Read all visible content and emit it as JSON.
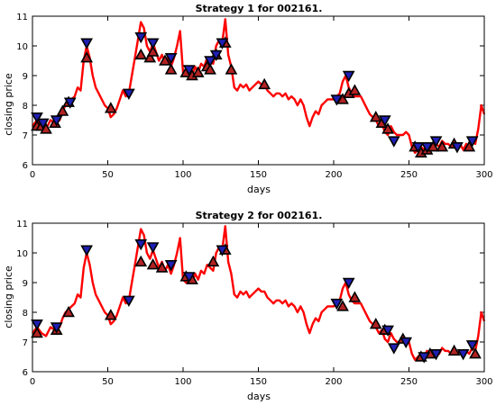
{
  "chart_data": [
    {
      "type": "line",
      "title": "Strategy 1 for 002161.",
      "xlabel": "days",
      "ylabel": "closing price",
      "xlim": [
        0,
        300
      ],
      "ylim": [
        6,
        11
      ],
      "xticks": [
        0,
        50,
        100,
        150,
        200,
        250,
        300
      ],
      "yticks": [
        6,
        7,
        8,
        9,
        10,
        11
      ],
      "grid": false,
      "series": [
        {
          "color": "#ff0000",
          "x": [
            0,
            3,
            6,
            9,
            12,
            15,
            18,
            20,
            22,
            24,
            26,
            28,
            30,
            32,
            34,
            36,
            38,
            40,
            42,
            44,
            46,
            48,
            50,
            52,
            54,
            56,
            58,
            60,
            62,
            64,
            66,
            68,
            70,
            72,
            74,
            76,
            78,
            80,
            82,
            84,
            86,
            88,
            90,
            92,
            94,
            96,
            98,
            100,
            102,
            104,
            106,
            108,
            110,
            112,
            114,
            116,
            118,
            120,
            122,
            124,
            126,
            128,
            130,
            132,
            134,
            136,
            138,
            140,
            142,
            144,
            146,
            148,
            150,
            152,
            154,
            156,
            158,
            160,
            162,
            164,
            166,
            168,
            170,
            172,
            174,
            176,
            178,
            180,
            182,
            184,
            186,
            188,
            190,
            192,
            194,
            196,
            198,
            200,
            202,
            204,
            206,
            208,
            210,
            212,
            214,
            216,
            218,
            220,
            222,
            224,
            226,
            228,
            230,
            232,
            234,
            236,
            238,
            240,
            242,
            244,
            246,
            248,
            250,
            252,
            254,
            256,
            258,
            260,
            262,
            264,
            266,
            268,
            270,
            272,
            274,
            276,
            278,
            280,
            282,
            284,
            286,
            288,
            290,
            292,
            294,
            296,
            298,
            300
          ],
          "y": [
            7.3,
            7.5,
            7.3,
            7.2,
            7.5,
            7.4,
            7.5,
            7.8,
            8.0,
            8.1,
            8.2,
            8.3,
            8.6,
            8.5,
            9.5,
            10.0,
            9.6,
            9.0,
            8.6,
            8.4,
            8.2,
            8.0,
            7.9,
            7.6,
            7.7,
            7.9,
            8.2,
            8.5,
            8.3,
            8.4,
            9.0,
            9.6,
            10.2,
            10.8,
            10.6,
            10.0,
            9.8,
            10.1,
            9.8,
            9.5,
            9.7,
            9.4,
            9.6,
            9.3,
            9.6,
            10.0,
            10.5,
            9.1,
            9.0,
            9.2,
            9.0,
            9.3,
            9.1,
            9.4,
            9.3,
            9.6,
            9.5,
            9.4,
            10.0,
            10.2,
            10.1,
            10.9,
            9.7,
            9.3,
            8.6,
            8.5,
            8.7,
            8.6,
            8.7,
            8.5,
            8.6,
            8.7,
            8.8,
            8.7,
            8.7,
            8.5,
            8.4,
            8.3,
            8.4,
            8.4,
            8.3,
            8.4,
            8.2,
            8.3,
            8.2,
            8.0,
            8.2,
            8.0,
            7.6,
            7.3,
            7.6,
            7.8,
            7.7,
            8.0,
            8.1,
            8.2,
            8.2,
            8.2,
            8.3,
            8.4,
            8.8,
            9.0,
            8.6,
            8.4,
            8.3,
            8.3,
            8.3,
            8.1,
            7.9,
            7.7,
            7.6,
            7.5,
            7.3,
            7.4,
            7.1,
            7.0,
            7.3,
            7.1,
            7.0,
            7.0,
            7.0,
            7.1,
            7.0,
            6.6,
            6.4,
            6.5,
            6.6,
            6.5,
            6.7,
            6.6,
            6.6,
            6.7,
            6.6,
            6.8,
            6.7,
            6.7,
            6.6,
            6.7,
            6.6,
            6.7,
            6.5,
            6.7,
            6.6,
            6.8,
            6.7,
            7.2,
            8.0,
            7.7
          ]
        }
      ],
      "markers": {
        "buy": [
          [
            3,
            7.3
          ],
          [
            6,
            7.3
          ],
          [
            9,
            7.2
          ],
          [
            15,
            7.4
          ],
          [
            20,
            7.8
          ],
          [
            24,
            8.1
          ],
          [
            36,
            9.6
          ],
          [
            52,
            7.9
          ],
          [
            72,
            9.7
          ],
          [
            78,
            9.6
          ],
          [
            80,
            9.8
          ],
          [
            88,
            9.5
          ],
          [
            92,
            9.2
          ],
          [
            102,
            9.1
          ],
          [
            106,
            9.0
          ],
          [
            110,
            9.1
          ],
          [
            116,
            9.3
          ],
          [
            118,
            9.2
          ],
          [
            122,
            9.7
          ],
          [
            128,
            10.1
          ],
          [
            132,
            9.2
          ],
          [
            154,
            8.7
          ],
          [
            206,
            8.2
          ],
          [
            210,
            8.4
          ],
          [
            214,
            8.5
          ],
          [
            228,
            7.6
          ],
          [
            232,
            7.4
          ],
          [
            236,
            7.2
          ],
          [
            254,
            6.6
          ],
          [
            258,
            6.4
          ],
          [
            262,
            6.5
          ],
          [
            266,
            6.6
          ],
          [
            272,
            6.6
          ],
          [
            280,
            6.7
          ],
          [
            290,
            6.6
          ]
        ],
        "sell": [
          [
            3,
            7.6
          ],
          [
            7,
            7.4
          ],
          [
            16,
            7.5
          ],
          [
            25,
            8.1
          ],
          [
            36,
            10.1
          ],
          [
            64,
            8.4
          ],
          [
            72,
            10.3
          ],
          [
            80,
            10.1
          ],
          [
            92,
            9.6
          ],
          [
            104,
            9.2
          ],
          [
            118,
            9.5
          ],
          [
            122,
            9.7
          ],
          [
            126,
            10.1
          ],
          [
            202,
            8.2
          ],
          [
            210,
            9.0
          ],
          [
            234,
            7.5
          ],
          [
            240,
            6.8
          ],
          [
            256,
            6.6
          ],
          [
            262,
            6.6
          ],
          [
            268,
            6.8
          ],
          [
            282,
            6.6
          ],
          [
            292,
            6.8
          ]
        ]
      }
    },
    {
      "type": "line",
      "title": "Strategy 2 for 002161.",
      "xlabel": "days",
      "ylabel": "closing price",
      "xlim": [
        0,
        300
      ],
      "ylim": [
        6,
        11
      ],
      "xticks": [
        0,
        50,
        100,
        150,
        200,
        250,
        300
      ],
      "yticks": [
        6,
        7,
        8,
        9,
        10,
        11
      ],
      "grid": false,
      "series": [
        {
          "color": "#ff0000",
          "x": [
            0,
            3,
            6,
            9,
            12,
            15,
            18,
            20,
            22,
            24,
            26,
            28,
            30,
            32,
            34,
            36,
            38,
            40,
            42,
            44,
            46,
            48,
            50,
            52,
            54,
            56,
            58,
            60,
            62,
            64,
            66,
            68,
            70,
            72,
            74,
            76,
            78,
            80,
            82,
            84,
            86,
            88,
            90,
            92,
            94,
            96,
            98,
            100,
            102,
            104,
            106,
            108,
            110,
            112,
            114,
            116,
            118,
            120,
            122,
            124,
            126,
            128,
            130,
            132,
            134,
            136,
            138,
            140,
            142,
            144,
            146,
            148,
            150,
            152,
            154,
            156,
            158,
            160,
            162,
            164,
            166,
            168,
            170,
            172,
            174,
            176,
            178,
            180,
            182,
            184,
            186,
            188,
            190,
            192,
            194,
            196,
            198,
            200,
            202,
            204,
            206,
            208,
            210,
            212,
            214,
            216,
            218,
            220,
            222,
            224,
            226,
            228,
            230,
            232,
            234,
            236,
            238,
            240,
            242,
            244,
            246,
            248,
            250,
            252,
            254,
            256,
            258,
            260,
            262,
            264,
            266,
            268,
            270,
            272,
            274,
            276,
            278,
            280,
            282,
            284,
            286,
            288,
            290,
            292,
            294,
            296,
            298,
            300
          ],
          "y": [
            7.3,
            7.5,
            7.3,
            7.2,
            7.5,
            7.4,
            7.5,
            7.8,
            8.0,
            8.1,
            8.2,
            8.3,
            8.6,
            8.5,
            9.5,
            10.0,
            9.6,
            9.0,
            8.6,
            8.4,
            8.2,
            8.0,
            7.9,
            7.6,
            7.7,
            7.9,
            8.2,
            8.5,
            8.3,
            8.4,
            9.0,
            9.6,
            10.2,
            10.8,
            10.6,
            10.0,
            9.8,
            10.1,
            9.8,
            9.5,
            9.7,
            9.4,
            9.6,
            9.3,
            9.6,
            10.0,
            10.5,
            9.1,
            9.0,
            9.2,
            9.0,
            9.3,
            9.1,
            9.4,
            9.3,
            9.6,
            9.5,
            9.4,
            10.0,
            10.2,
            10.1,
            10.9,
            9.7,
            9.3,
            8.6,
            8.5,
            8.7,
            8.6,
            8.7,
            8.5,
            8.6,
            8.7,
            8.8,
            8.7,
            8.7,
            8.5,
            8.4,
            8.3,
            8.4,
            8.4,
            8.3,
            8.4,
            8.2,
            8.3,
            8.2,
            8.0,
            8.2,
            8.0,
            7.6,
            7.3,
            7.6,
            7.8,
            7.7,
            8.0,
            8.1,
            8.2,
            8.2,
            8.2,
            8.3,
            8.4,
            8.8,
            9.0,
            8.6,
            8.4,
            8.3,
            8.3,
            8.3,
            8.1,
            7.9,
            7.7,
            7.6,
            7.5,
            7.3,
            7.4,
            7.1,
            7.0,
            7.3,
            7.1,
            7.0,
            7.0,
            7.0,
            7.1,
            7.0,
            6.6,
            6.4,
            6.5,
            6.6,
            6.5,
            6.7,
            6.6,
            6.6,
            6.7,
            6.6,
            6.8,
            6.7,
            6.7,
            6.6,
            6.7,
            6.6,
            6.7,
            6.5,
            6.7,
            6.6,
            6.8,
            6.7,
            7.2,
            8.0,
            7.7
          ]
        }
      ],
      "markers": {
        "buy": [
          [
            3,
            7.3
          ],
          [
            16,
            7.4
          ],
          [
            24,
            8.0
          ],
          [
            52,
            7.9
          ],
          [
            72,
            9.7
          ],
          [
            80,
            9.6
          ],
          [
            86,
            9.5
          ],
          [
            102,
            9.2
          ],
          [
            106,
            9.1
          ],
          [
            120,
            9.7
          ],
          [
            128,
            10.1
          ],
          [
            206,
            8.2
          ],
          [
            214,
            8.5
          ],
          [
            228,
            7.6
          ],
          [
            234,
            7.4
          ],
          [
            246,
            7.1
          ],
          [
            258,
            6.5
          ],
          [
            264,
            6.6
          ],
          [
            280,
            6.7
          ],
          [
            294,
            6.6
          ]
        ],
        "sell": [
          [
            3,
            7.6
          ],
          [
            16,
            7.5
          ],
          [
            36,
            10.1
          ],
          [
            64,
            8.4
          ],
          [
            72,
            10.3
          ],
          [
            80,
            10.2
          ],
          [
            92,
            9.6
          ],
          [
            104,
            9.2
          ],
          [
            126,
            10.1
          ],
          [
            202,
            8.3
          ],
          [
            210,
            9.0
          ],
          [
            236,
            7.4
          ],
          [
            240,
            6.8
          ],
          [
            248,
            7.0
          ],
          [
            260,
            6.5
          ],
          [
            268,
            6.6
          ],
          [
            286,
            6.6
          ],
          [
            292,
            6.9
          ]
        ]
      }
    }
  ]
}
